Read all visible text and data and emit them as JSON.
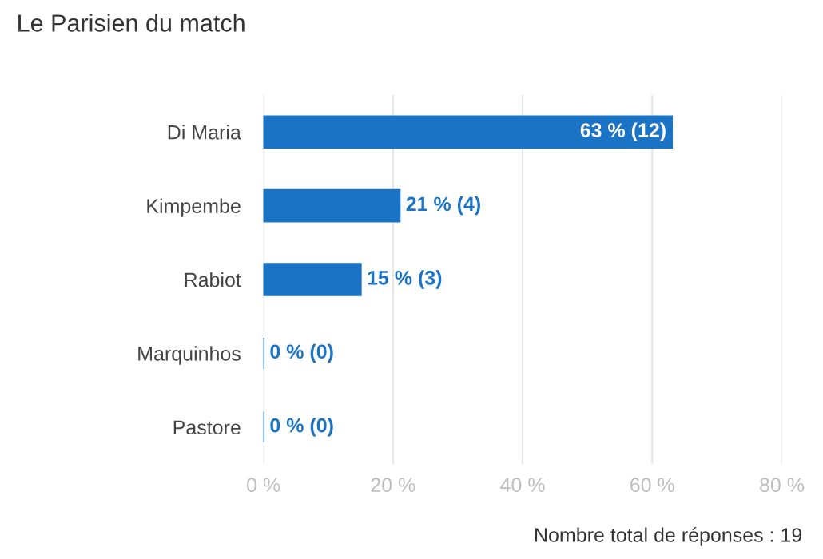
{
  "chart_data": {
    "type": "bar",
    "orientation": "horizontal",
    "title": "Le Parisien du match",
    "categories": [
      "Di Maria",
      "Kimpembe",
      "Rabiot",
      "Marquinhos",
      "Pastore"
    ],
    "values": [
      63,
      21,
      15,
      0,
      0
    ],
    "value_labels": [
      "63 % (12)",
      "21 % (4)",
      "15 % (3)",
      "0 % (0)",
      "0 % (0)"
    ],
    "color": "#1a73c4",
    "xlim": [
      0,
      80
    ],
    "xticks": [
      {
        "value": 0,
        "label": "0 %"
      },
      {
        "value": 20,
        "label": "20 %"
      },
      {
        "value": 40,
        "label": "40 %"
      },
      {
        "value": 60,
        "label": "60 %"
      },
      {
        "value": 80,
        "label": "80 %"
      }
    ],
    "grid": "x",
    "annotations": [
      "Nombre total de réponses : 19"
    ]
  }
}
